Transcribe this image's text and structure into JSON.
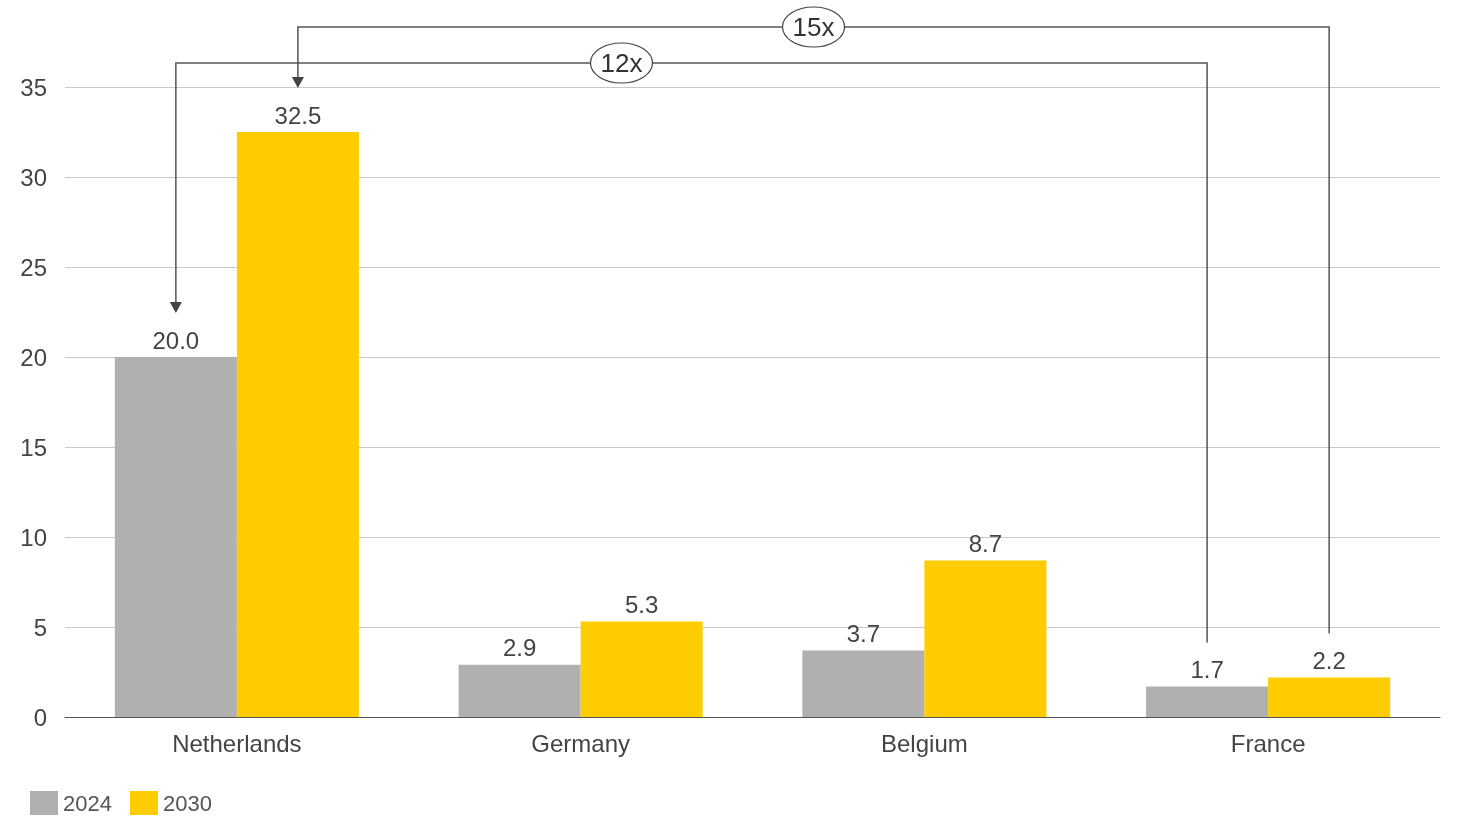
{
  "chart_data": {
    "type": "bar",
    "categories": [
      "Netherlands",
      "Germany",
      "Belgium",
      "France"
    ],
    "series": [
      {
        "name": "2024",
        "color": "#b0b0b0",
        "values": [
          20.0,
          2.9,
          3.7,
          1.7
        ],
        "value_labels": [
          "20.0",
          "2.9",
          "3.7",
          "1.7"
        ]
      },
      {
        "name": "2030",
        "color": "#ffcc00",
        "values": [
          32.5,
          5.3,
          8.7,
          2.2
        ],
        "value_labels": [
          "32.5",
          "5.3",
          "8.7",
          "2.2"
        ]
      }
    ],
    "ylim": [
      0,
      35
    ],
    "yticks": [
      0,
      5,
      10,
      15,
      20,
      25,
      30,
      35
    ],
    "grid": "y",
    "legend": "bottom left",
    "annotations": [
      "12x",
      "15x"
    ]
  }
}
